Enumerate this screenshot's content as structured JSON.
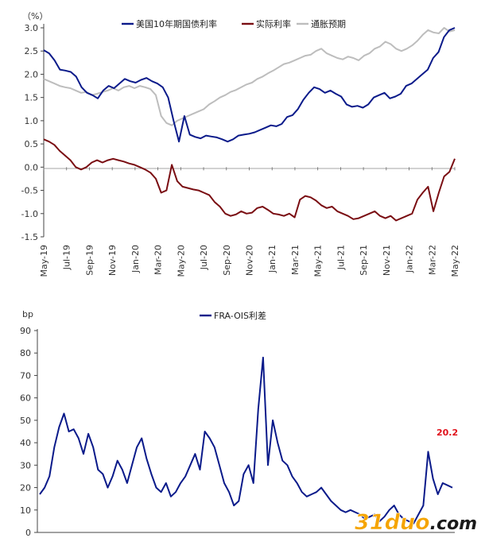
{
  "chart_data": [
    {
      "type": "line",
      "unit_label": "（%）",
      "y_ticks": [
        "3.0",
        "2.5",
        "2.0",
        "1.5",
        "1.0",
        "0.5",
        "0.0",
        "-0.5",
        "-1.0",
        "-1.5"
      ],
      "ylim": [
        -1.5,
        3.0
      ],
      "x_ticks": [
        "May-19",
        "Jul-19",
        "Sep-19",
        "Nov-19",
        "Jan-20",
        "Mar-20",
        "May-20",
        "Jul-20",
        "Sep-20",
        "Nov-20",
        "Jan-21",
        "Mar-21",
        "May-21",
        "Jul-21",
        "Sep-21",
        "Nov-21",
        "Jan-22",
        "Mar-22",
        "May-22"
      ],
      "legend_position": "top",
      "series": [
        {
          "name": "美国10年期国债利率",
          "color": "#0a1a8a",
          "values": [
            2.52,
            2.45,
            2.3,
            2.1,
            2.08,
            2.05,
            1.95,
            1.72,
            1.6,
            1.55,
            1.48,
            1.65,
            1.75,
            1.7,
            1.8,
            1.9,
            1.85,
            1.82,
            1.88,
            1.92,
            1.85,
            1.8,
            1.72,
            1.5,
            1.0,
            0.55,
            1.1,
            0.7,
            0.65,
            0.62,
            0.68,
            0.66,
            0.64,
            0.6,
            0.55,
            0.6,
            0.68,
            0.7,
            0.72,
            0.75,
            0.8,
            0.85,
            0.9,
            0.88,
            0.93,
            1.08,
            1.12,
            1.25,
            1.45,
            1.6,
            1.72,
            1.68,
            1.6,
            1.65,
            1.58,
            1.52,
            1.35,
            1.3,
            1.32,
            1.28,
            1.35,
            1.5,
            1.55,
            1.6,
            1.48,
            1.52,
            1.58,
            1.75,
            1.8,
            1.9,
            2.0,
            2.1,
            2.35,
            2.48,
            2.8,
            2.95,
            3.0
          ]
        },
        {
          "name": "实际利率",
          "color": "#7a0d12",
          "values": [
            0.6,
            0.55,
            0.48,
            0.35,
            0.25,
            0.15,
            0.0,
            -0.05,
            0.0,
            0.1,
            0.15,
            0.1,
            0.15,
            0.18,
            0.15,
            0.12,
            0.08,
            0.05,
            0.0,
            -0.05,
            -0.12,
            -0.25,
            -0.55,
            -0.5,
            0.05,
            -0.3,
            -0.42,
            -0.45,
            -0.48,
            -0.5,
            -0.55,
            -0.6,
            -0.75,
            -0.85,
            -1.0,
            -1.05,
            -1.02,
            -0.95,
            -1.0,
            -0.98,
            -0.88,
            -0.85,
            -0.92,
            -1.0,
            -1.02,
            -1.05,
            -1.0,
            -1.08,
            -0.7,
            -0.62,
            -0.65,
            -0.72,
            -0.82,
            -0.88,
            -0.85,
            -0.95,
            -1.0,
            -1.05,
            -1.12,
            -1.1,
            -1.05,
            -1.0,
            -0.95,
            -1.05,
            -1.1,
            -1.05,
            -1.15,
            -1.1,
            -1.05,
            -1.0,
            -0.7,
            -0.55,
            -0.42,
            -0.95,
            -0.55,
            -0.2,
            -0.1,
            0.18
          ]
        },
        {
          "name": "通胀预期",
          "color": "#bdbdbd",
          "values": [
            1.9,
            1.85,
            1.8,
            1.75,
            1.72,
            1.7,
            1.65,
            1.6,
            1.62,
            1.55,
            1.58,
            1.62,
            1.65,
            1.7,
            1.65,
            1.72,
            1.75,
            1.7,
            1.75,
            1.72,
            1.68,
            1.55,
            1.1,
            0.95,
            0.9,
            1.0,
            1.05,
            1.1,
            1.15,
            1.2,
            1.25,
            1.35,
            1.42,
            1.5,
            1.55,
            1.62,
            1.66,
            1.72,
            1.78,
            1.82,
            1.9,
            1.95,
            2.02,
            2.08,
            2.15,
            2.22,
            2.25,
            2.3,
            2.35,
            2.4,
            2.42,
            2.5,
            2.55,
            2.45,
            2.4,
            2.35,
            2.32,
            2.38,
            2.35,
            2.3,
            2.4,
            2.45,
            2.55,
            2.6,
            2.7,
            2.65,
            2.55,
            2.5,
            2.55,
            2.62,
            2.72,
            2.85,
            2.95,
            2.9,
            2.88,
            3.0,
            2.92,
            2.95
          ]
        }
      ]
    },
    {
      "type": "line",
      "unit_label": "bp",
      "y_ticks": [
        "90",
        "80",
        "70",
        "60",
        "50",
        "40",
        "30",
        "20",
        "10",
        "0"
      ],
      "ylim": [
        0,
        90
      ],
      "legend_position": "top",
      "series": [
        {
          "name": "FRA-OIS利差",
          "color": "#0a1a8a",
          "values": [
            17,
            20,
            25,
            38,
            47,
            53,
            45,
            46,
            42,
            35,
            44,
            38,
            28,
            26,
            20,
            25,
            32,
            28,
            22,
            30,
            38,
            42,
            33,
            26,
            20,
            18,
            22,
            16,
            18,
            22,
            25,
            30,
            35,
            28,
            45,
            42,
            38,
            30,
            22,
            18,
            12,
            14,
            26,
            30,
            22,
            55,
            78,
            30,
            50,
            40,
            32,
            30,
            25,
            22,
            18,
            16,
            17,
            18,
            20,
            17,
            14,
            12,
            10,
            9,
            10,
            9,
            8,
            6,
            7,
            8,
            5,
            7,
            10,
            12,
            8,
            6,
            5,
            4,
            8,
            12,
            36,
            24,
            17,
            22,
            21,
            20
          ]
        }
      ],
      "annotations": [
        {
          "text": "20.2",
          "x_index": 85,
          "y": 20.2,
          "color": "#e0101a"
        }
      ]
    }
  ],
  "watermark": {
    "text_a": "31duo",
    "text_b": ".com",
    "color_a": "#f5a400",
    "color_b": "#1a1a1a"
  }
}
